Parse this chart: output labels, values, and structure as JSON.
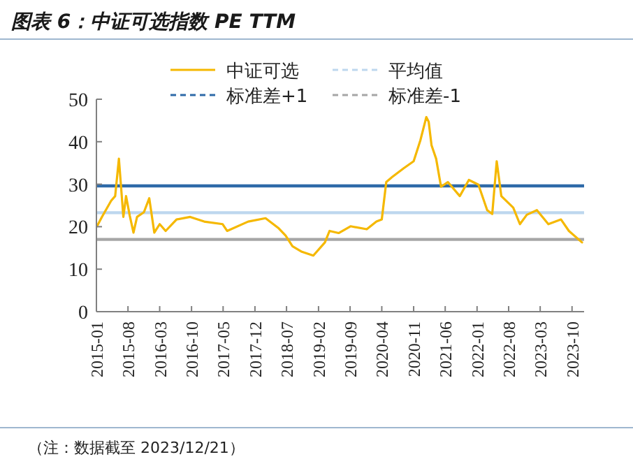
{
  "chart_data": {
    "type": "line",
    "title": "图表 6：中证可选指数 PE TTM",
    "annotations": [
      "（注：数据截至 2023/12/21）"
    ],
    "series": [
      {
        "name": "中证可选",
        "color": "#f5b800",
        "x": [
          "2015-01-05",
          "2015-02-07",
          "2015-04-10",
          "2015-05-07",
          "2015-06-01",
          "2015-07-01",
          "2015-07-19",
          "2015-08-13",
          "2015-09-07",
          "2015-10-01",
          "2015-11-16",
          "2015-12-22",
          "2016-01-25",
          "2016-03-01",
          "2016-04-10",
          "2016-06-22",
          "2016-09-22",
          "2016-12-25",
          "2017-04-28",
          "2017-05-28",
          "2017-10-16",
          "2018-02-10",
          "2018-05-10",
          "2018-06-25",
          "2018-08-10",
          "2018-10-12",
          "2018-12-28",
          "2019-03-16",
          "2019-04-16",
          "2019-06-16",
          "2019-09-04",
          "2019-12-22",
          "2020-02-25",
          "2020-04-01",
          "2020-05-01",
          "2020-06-13",
          "2020-08-28",
          "2020-11-01",
          "2020-12-16",
          "2021-01-25",
          "2021-02-10",
          "2021-03-01",
          "2021-04-01",
          "2021-05-04",
          "2021-06-19",
          "2021-09-07",
          "2021-11-07",
          "2022-01-10",
          "2022-03-10",
          "2022-04-13",
          "2022-05-13",
          "2022-06-13",
          "2022-09-01",
          "2022-10-16",
          "2022-12-01",
          "2023-02-07",
          "2023-04-25",
          "2023-07-19",
          "2023-09-10",
          "2023-12-07"
        ],
        "values": [
          20.1,
          22.3,
          26.1,
          27.2,
          36.0,
          22.3,
          27.2,
          22.6,
          18.6,
          22.3,
          23.4,
          26.7,
          18.6,
          20.6,
          19.0,
          21.7,
          22.3,
          21.2,
          20.6,
          19.0,
          21.2,
          22.0,
          19.6,
          17.9,
          15.4,
          14.1,
          13.2,
          16.3,
          19.0,
          18.5,
          20.1,
          19.4,
          21.2,
          21.7,
          30.5,
          31.8,
          33.8,
          35.4,
          40.3,
          45.8,
          44.7,
          39.2,
          36.0,
          29.4,
          30.5,
          27.2,
          31.0,
          29.9,
          23.9,
          23.0,
          35.4,
          27.2,
          24.5,
          20.6,
          22.8,
          23.9,
          20.6,
          21.7,
          19.0,
          16.3
        ]
      }
    ],
    "ref_lines": [
      {
        "axis": "y",
        "value": 23.3,
        "label": "平均值",
        "color": "#bdd7ee"
      },
      {
        "axis": "y",
        "value": 29.6,
        "label": "标准差+1",
        "color": "#2e6aa8"
      },
      {
        "axis": "y",
        "value": 17.0,
        "label": "标准差-1",
        "color": "#a6a6a6"
      }
    ],
    "xlim": [
      "2015-01",
      "2023-12-21"
    ],
    "xticks": [
      "2015-01",
      "2015-08",
      "2016-03",
      "2016-10",
      "2017-05",
      "2017-12",
      "2018-07",
      "2019-02",
      "2019-09",
      "2020-04",
      "2020-11",
      "2021-06",
      "2022-01",
      "2022-08",
      "2023-03",
      "2023-10"
    ],
    "ylim": [
      0,
      50
    ],
    "yticks": [
      0,
      10,
      20,
      30,
      40,
      50
    ],
    "legend": "top",
    "grid": false,
    "marker": "none",
    "line_style": "solid"
  }
}
